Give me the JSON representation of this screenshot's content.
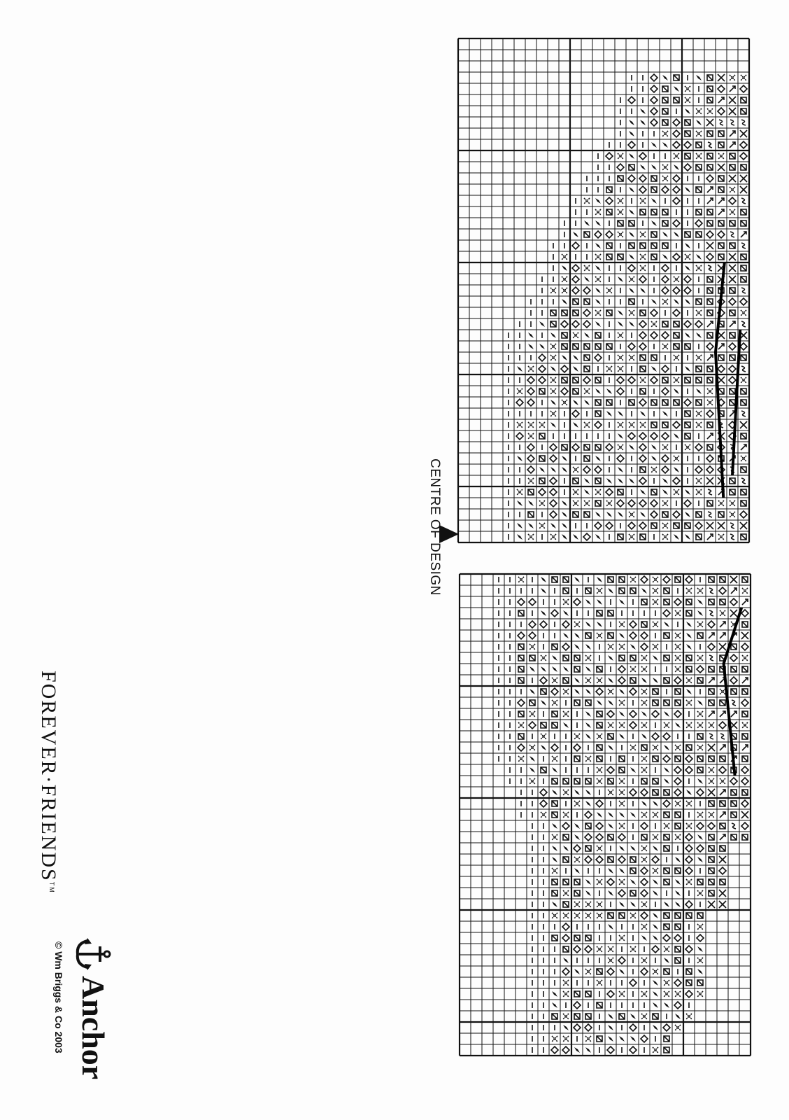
{
  "chart": {
    "centre_label": "CENTRE OF DESIGN",
    "symbols": [
      "dash",
      "diamond-filled",
      "cross",
      "open-diamond",
      "slashed-square",
      "backstitch-x",
      "arrow-ne",
      "curl"
    ]
  },
  "branding": {
    "product": "FOREVER·FRIENDS",
    "trademark": "TM",
    "brand": "Anchor",
    "copyright": "© Wm Briggs & Co 2003"
  },
  "colors": {
    "ink": "#111111",
    "paper": "#fdfdfd"
  }
}
